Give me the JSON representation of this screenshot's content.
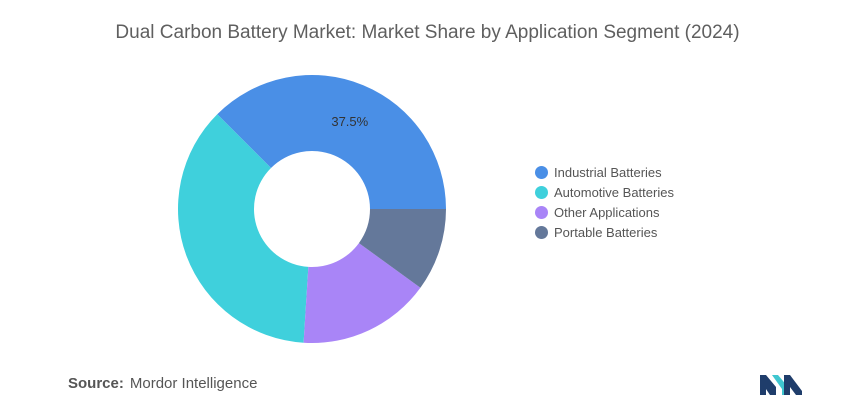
{
  "chart_data": {
    "type": "pie",
    "title": "Dual Carbon Battery Market: Market Share by Application Segment (2024)",
    "categories": [
      "Industrial Batteries",
      "Automotive Batteries",
      "Other Applications",
      "Portable Batteries"
    ],
    "values": [
      37.5,
      36.5,
      16.0,
      10.0
    ],
    "data_labels": [
      "37.5%",
      "",
      "",
      ""
    ],
    "colors": [
      "#4a8fe6",
      "#3fd0dc",
      "#a985f7",
      "#64789a"
    ],
    "donut": true,
    "legend_position": "right"
  },
  "source": {
    "label": "Source:",
    "value": "Mordor Intelligence"
  },
  "logo": {
    "icon": "mordor-intelligence-logo-icon",
    "colors": [
      "#1f3d6b",
      "#3fc6cf"
    ]
  }
}
